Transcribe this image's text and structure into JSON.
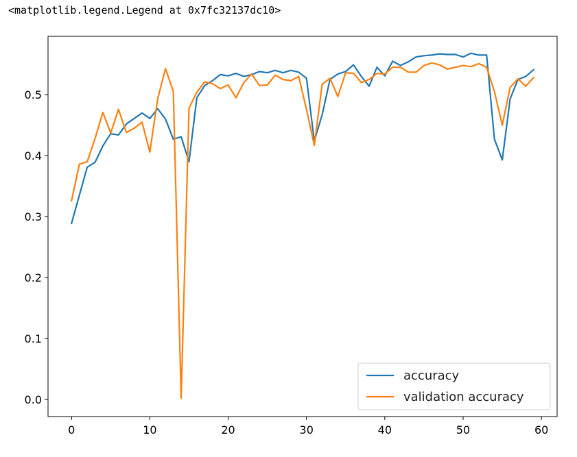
{
  "output_text": "<matplotlib.legend.Legend at 0x7fc32137dc10>",
  "chart_data": {
    "type": "line",
    "title": "",
    "xlabel": "",
    "ylabel": "",
    "xlim": [
      -3,
      62
    ],
    "ylim": [
      -0.028,
      0.5958
    ],
    "xticks": [
      0,
      10,
      20,
      30,
      40,
      50,
      60
    ],
    "yticks": [
      0.0,
      0.1,
      0.2,
      0.3,
      0.4,
      0.5
    ],
    "grid": false,
    "legend_position": "lower-right",
    "series": [
      {
        "name": "accuracy",
        "color": "#1f77b4",
        "values": [
          0.289,
          0.335,
          0.381,
          0.389,
          0.416,
          0.436,
          0.434,
          0.452,
          0.461,
          0.47,
          0.461,
          0.477,
          0.46,
          0.427,
          0.431,
          0.39,
          0.495,
          0.515,
          0.523,
          0.533,
          0.531,
          0.535,
          0.53,
          0.533,
          0.538,
          0.536,
          0.54,
          0.536,
          0.54,
          0.537,
          0.527,
          0.424,
          0.467,
          0.525,
          0.534,
          0.538,
          0.549,
          0.53,
          0.514,
          0.545,
          0.531,
          0.555,
          0.548,
          0.554,
          0.562,
          0.564,
          0.565,
          0.567,
          0.566,
          0.566,
          0.562,
          0.568,
          0.565,
          0.565,
          0.427,
          0.393,
          0.493,
          0.525,
          0.53,
          0.541
        ]
      },
      {
        "name": "validation accuracy",
        "color": "#ff7f0e",
        "values": [
          0.326,
          0.386,
          0.39,
          0.428,
          0.471,
          0.437,
          0.476,
          0.438,
          0.445,
          0.455,
          0.406,
          0.493,
          0.543,
          0.505,
          0.002,
          0.478,
          0.504,
          0.521,
          0.518,
          0.51,
          0.516,
          0.495,
          0.52,
          0.534,
          0.515,
          0.516,
          0.532,
          0.525,
          0.523,
          0.53,
          0.476,
          0.417,
          0.517,
          0.527,
          0.497,
          0.536,
          0.535,
          0.52,
          0.525,
          0.535,
          0.534,
          0.545,
          0.545,
          0.537,
          0.537,
          0.548,
          0.552,
          0.549,
          0.542,
          0.545,
          0.548,
          0.546,
          0.551,
          0.545,
          0.505,
          0.45,
          0.512,
          0.526,
          0.514,
          0.528
        ]
      }
    ]
  }
}
